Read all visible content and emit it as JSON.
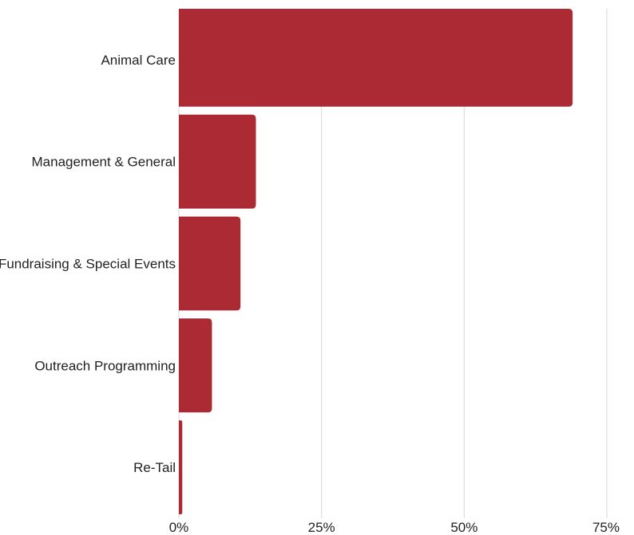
{
  "chart_data": {
    "type": "bar",
    "orientation": "horizontal",
    "categories": [
      "Animal Care",
      "Management & General",
      "Fundraising & Special Events",
      "Outreach Programming",
      "Re-Tail"
    ],
    "values": [
      69,
      13.5,
      10.8,
      5.8,
      0.6
    ],
    "xlim": [
      0,
      75
    ],
    "x_ticks": [
      0,
      25,
      50,
      75
    ],
    "x_tick_labels": [
      "0%",
      "25%",
      "50%",
      "75%"
    ],
    "title": "",
    "xlabel": "",
    "ylabel": "",
    "grid": "vertical",
    "legend": "none",
    "bar_color": "#ab2a33",
    "grid_color": "#dedede",
    "text_color": "#222222"
  }
}
